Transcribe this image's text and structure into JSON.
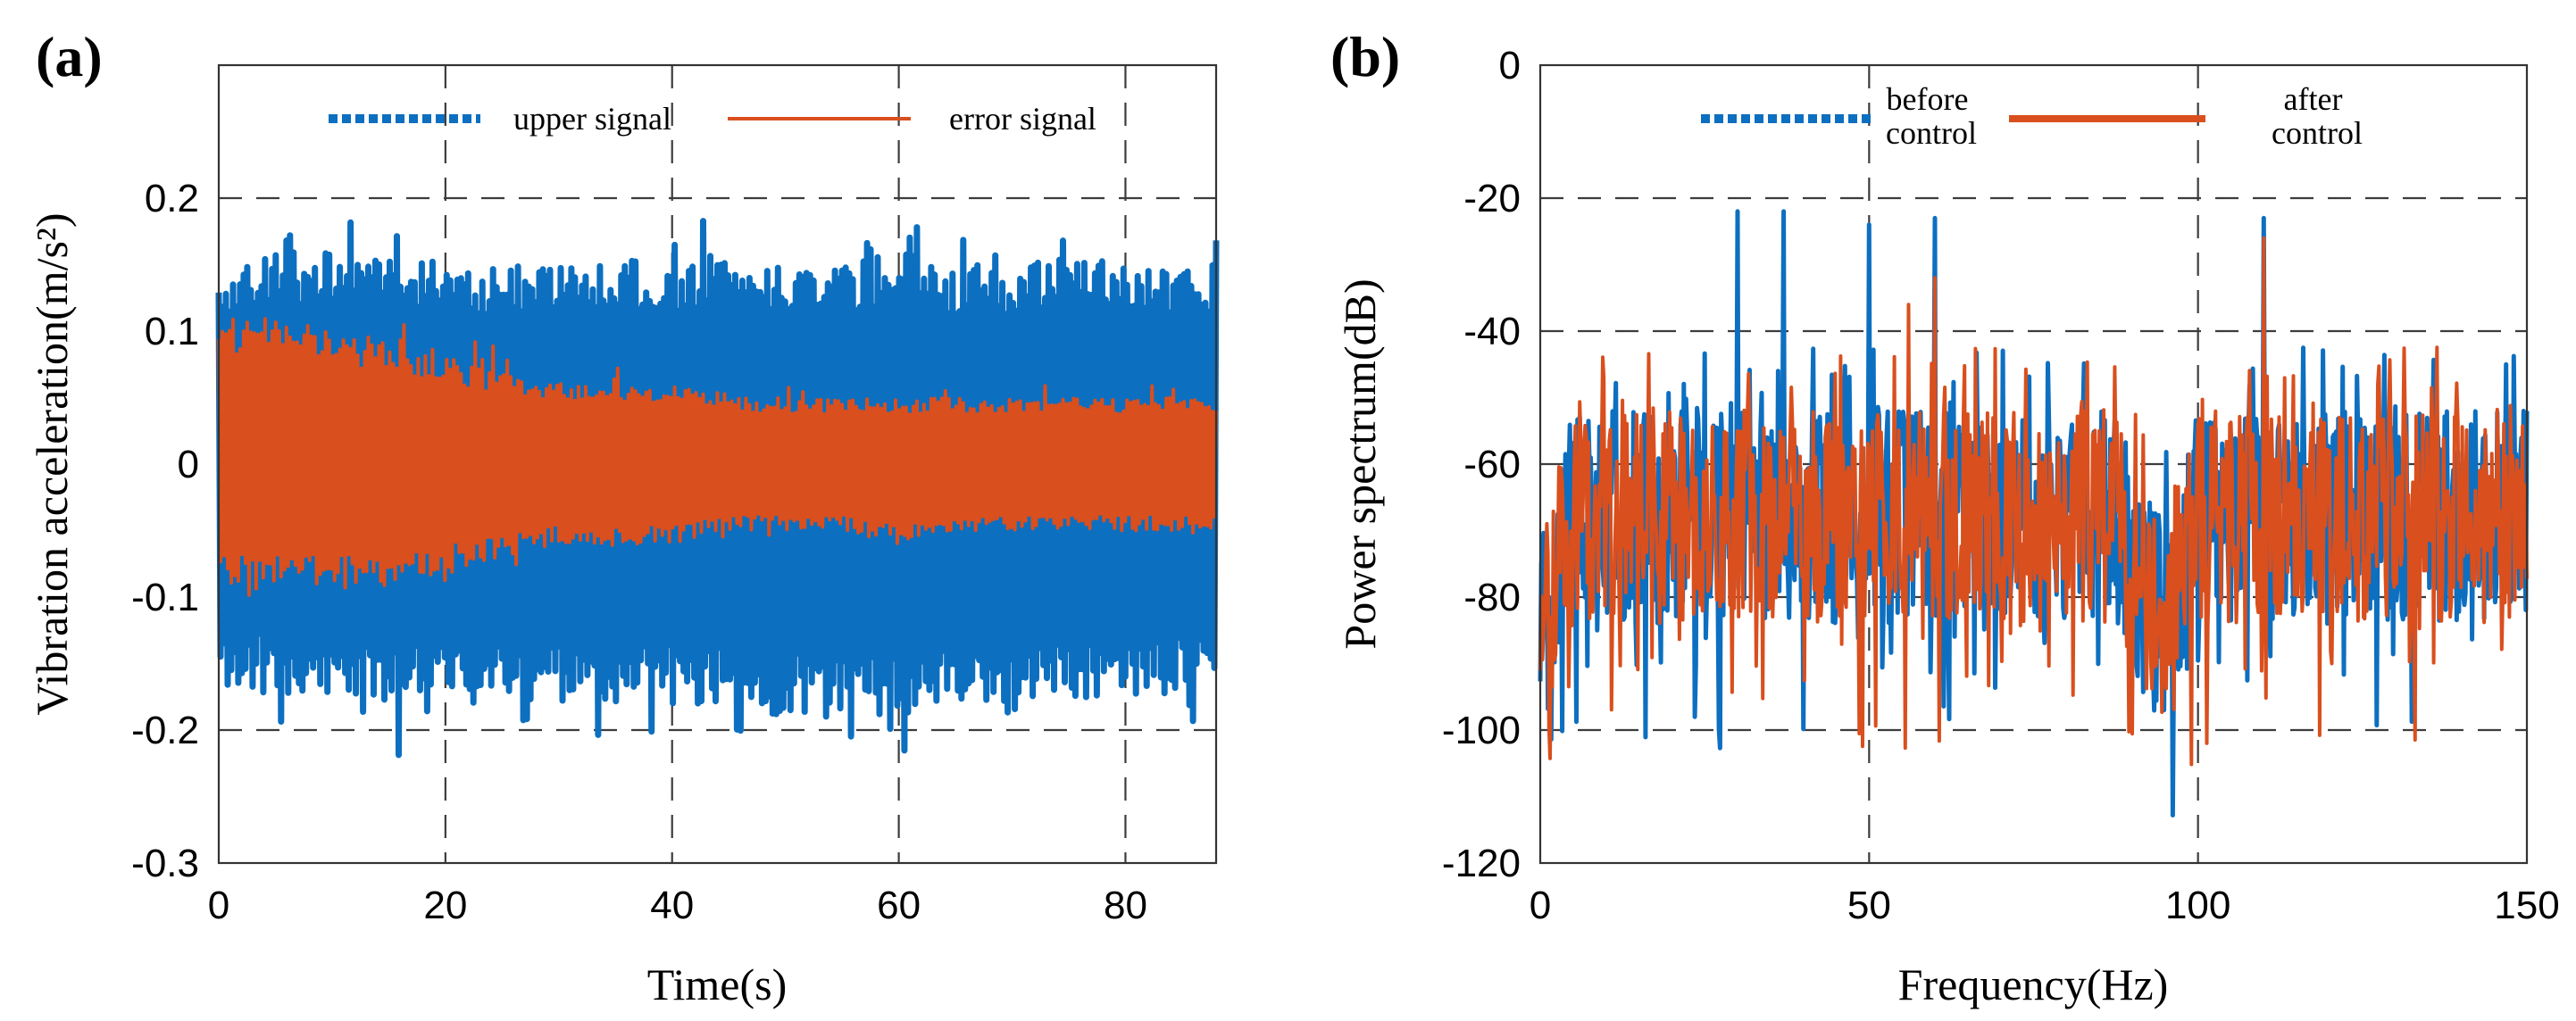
{
  "chart_data": [
    {
      "panel_label": "(a)",
      "type": "line",
      "xlabel": "Time(s)",
      "ylabel": "Vibration acceleration(m/s²)",
      "xlim": [
        0,
        88
      ],
      "ylim": [
        -0.3,
        0.3
      ],
      "x_ticks": [
        0,
        20,
        40,
        60,
        80
      ],
      "y_ticks": [
        -0.3,
        -0.2,
        -0.1,
        0,
        0.1,
        0.2
      ],
      "y_tick_labels": [
        "-0.3",
        "-0.2",
        "-0.1",
        "0",
        "0.1",
        "0.2"
      ],
      "grid": true,
      "legend_position": "top",
      "series": [
        {
          "name": "upper signal",
          "color": "#0d6fc0",
          "style": "dashed",
          "envelope_x": [
            0,
            5,
            10,
            15,
            20,
            25,
            30,
            35,
            40,
            45,
            50,
            55,
            60,
            65,
            70,
            75,
            80,
            85,
            88
          ],
          "envelope_upper": [
            0.15,
            0.16,
            0.16,
            0.16,
            0.15,
            0.15,
            0.15,
            0.15,
            0.15,
            0.16,
            0.15,
            0.15,
            0.16,
            0.15,
            0.15,
            0.16,
            0.15,
            0.15,
            0.15
          ],
          "envelope_lower": [
            -0.17,
            -0.17,
            -0.18,
            -0.18,
            -0.18,
            -0.18,
            -0.18,
            -0.18,
            -0.18,
            -0.18,
            -0.19,
            -0.19,
            -0.19,
            -0.18,
            -0.18,
            -0.18,
            -0.18,
            -0.17,
            -0.17
          ]
        },
        {
          "name": "error signal",
          "color": "#d94f1e",
          "style": "solid",
          "envelope_x": [
            0,
            5,
            10,
            15,
            20,
            25,
            30,
            35,
            40,
            45,
            50,
            55,
            60,
            65,
            70,
            75,
            80,
            85,
            88
          ],
          "envelope_upper": [
            0.11,
            0.11,
            0.1,
            0.09,
            0.08,
            0.07,
            0.06,
            0.06,
            0.06,
            0.05,
            0.05,
            0.05,
            0.05,
            0.05,
            0.05,
            0.05,
            0.05,
            0.05,
            0.05
          ],
          "envelope_lower": [
            -0.09,
            -0.09,
            -0.09,
            -0.09,
            -0.08,
            -0.07,
            -0.06,
            -0.06,
            -0.06,
            -0.05,
            -0.05,
            -0.05,
            -0.06,
            -0.05,
            -0.05,
            -0.05,
            -0.05,
            -0.05,
            -0.05
          ]
        }
      ]
    },
    {
      "panel_label": "(b)",
      "type": "line",
      "xlabel": "Frequency(Hz)",
      "ylabel": "Power spectrum(dB)",
      "xlim": [
        0,
        150
      ],
      "ylim": [
        -120,
        0
      ],
      "x_ticks": [
        0,
        50,
        100,
        150
      ],
      "y_ticks": [
        -120,
        -100,
        -80,
        -60,
        -40,
        -20,
        0
      ],
      "grid": true,
      "legend_position": "top",
      "series": [
        {
          "name": "before control",
          "color": "#0d6fc0",
          "style": "dashed",
          "peaks_x": [
            30,
            37,
            50,
            60,
            110
          ],
          "peaks_y": [
            -22,
            -22,
            -24,
            -23,
            -23
          ]
        },
        {
          "name": "after control",
          "color": "#d94f1e",
          "style": "solid",
          "peaks_x": [
            30,
            37,
            56,
            60,
            110
          ],
          "peaks_y": [
            -55,
            -56,
            -36,
            -32,
            -26
          ]
        }
      ]
    }
  ]
}
